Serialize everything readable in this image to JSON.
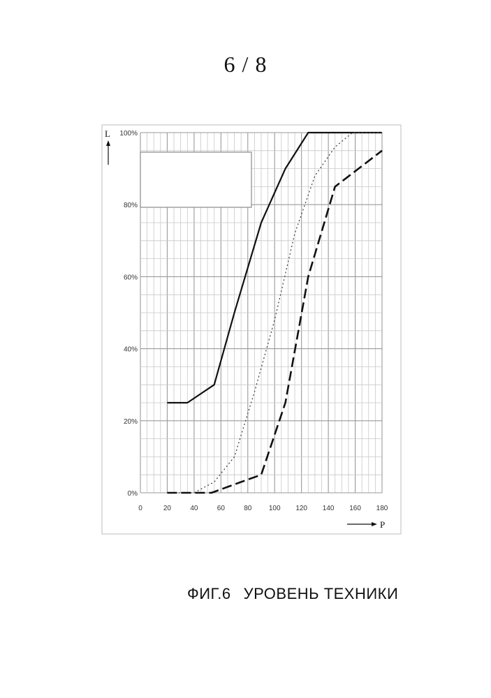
{
  "page": {
    "number": "6 / 8",
    "caption_figure": "ФИГ.6",
    "caption_text": "УРОВЕНЬ ТЕХНИКИ"
  },
  "chart_data": {
    "type": "line",
    "title": "",
    "xlabel": "P",
    "ylabel": "L",
    "xlim": [
      0,
      180
    ],
    "ylim": [
      0,
      100
    ],
    "x_ticks": [
      "0",
      "20",
      "40",
      "60",
      "80",
      "100",
      "120",
      "140",
      "160",
      "180"
    ],
    "y_ticks": [
      "0%",
      "20%",
      "40%",
      "60%",
      "80%",
      "100%"
    ],
    "grid": true,
    "legend": "top-left (blank box)",
    "series": [
      {
        "style": "solid",
        "color": "#111111",
        "points": [
          [
            20,
            25
          ],
          [
            35,
            25
          ],
          [
            55,
            30
          ],
          [
            70,
            50
          ],
          [
            90,
            75
          ],
          [
            108,
            90
          ],
          [
            125,
            100
          ],
          [
            180,
            100
          ]
        ]
      },
      {
        "style": "dotted",
        "color": "#444444",
        "points": [
          [
            20,
            0
          ],
          [
            40,
            0
          ],
          [
            55,
            3
          ],
          [
            70,
            10
          ],
          [
            85,
            28
          ],
          [
            100,
            48
          ],
          [
            115,
            72
          ],
          [
            130,
            88
          ],
          [
            145,
            96
          ],
          [
            158,
            100
          ],
          [
            180,
            100
          ]
        ]
      },
      {
        "style": "dashed",
        "color": "#111111",
        "points": [
          [
            20,
            0
          ],
          [
            53,
            0
          ],
          [
            75,
            3
          ],
          [
            90,
            5
          ],
          [
            108,
            25
          ],
          [
            125,
            60
          ],
          [
            145,
            85
          ],
          [
            180,
            95
          ]
        ]
      }
    ]
  }
}
